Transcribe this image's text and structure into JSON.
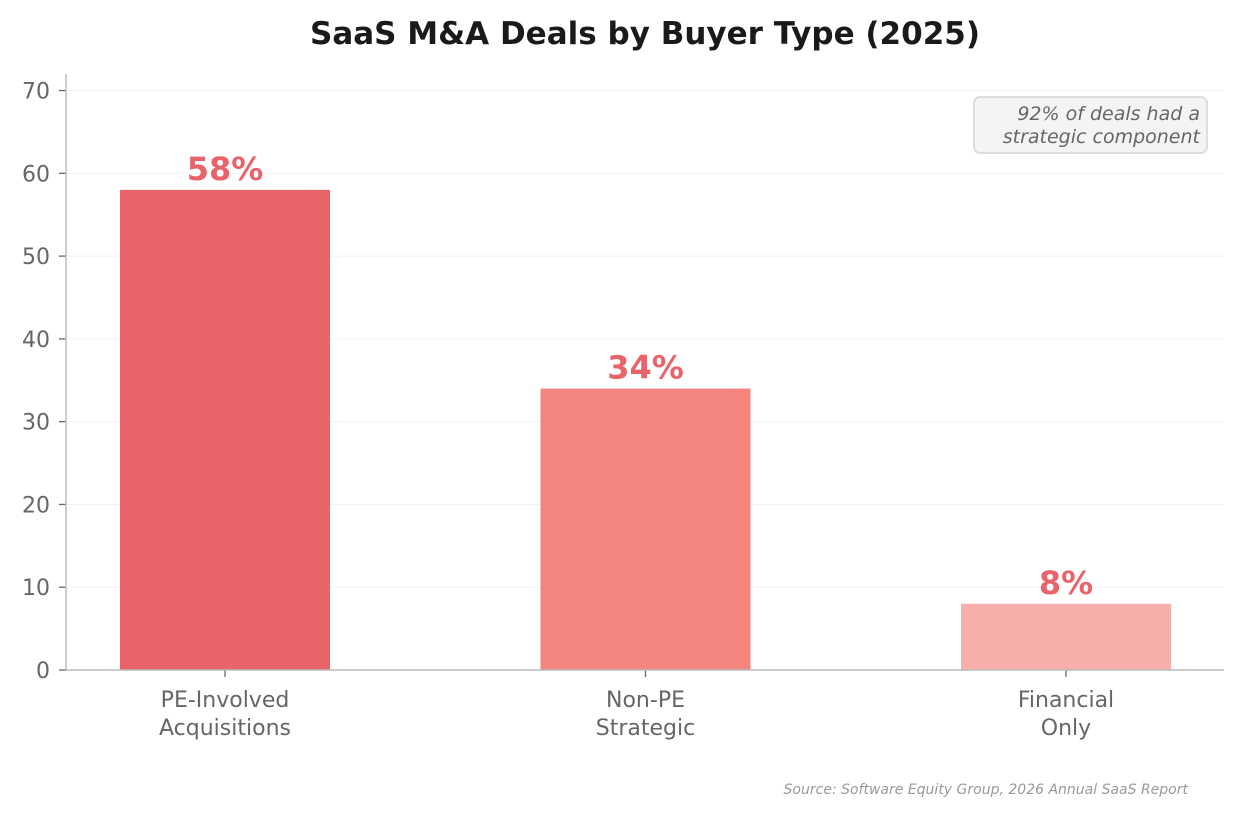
{
  "chart_data": {
    "type": "bar",
    "title": "SaaS M&A Deals by Buyer Type (2025)",
    "xlabel": "",
    "ylabel": "",
    "categories": [
      [
        "PE-Involved",
        "Acquisitions"
      ],
      [
        "Non-PE",
        "Strategic"
      ],
      [
        "Financial",
        "Only"
      ]
    ],
    "values": [
      58,
      34,
      8
    ],
    "data_labels": [
      "58%",
      "34%",
      "8%"
    ],
    "colors": [
      "#e8646a",
      "#f4857e",
      "#f8afab"
    ],
    "label_color": "#e8646a",
    "ylim": [
      0,
      72
    ],
    "yticks": [
      0,
      10,
      20,
      30,
      40,
      50,
      60,
      70
    ],
    "grid": true,
    "annotation": [
      "92% of deals had a",
      "strategic component"
    ],
    "annotation_position": "top-right",
    "source": "Source: Software Equity Group, 2026 Annual SaaS Report"
  }
}
